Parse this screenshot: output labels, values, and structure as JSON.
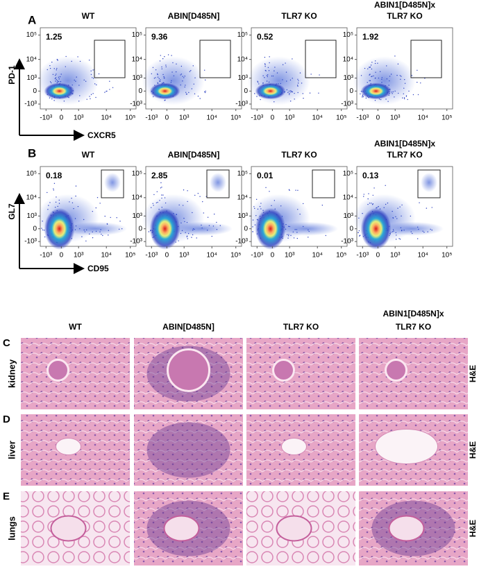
{
  "flow_panels": [
    {
      "label": "A",
      "y_label": "PD-1",
      "x_label": "CXCR5",
      "plots": [
        {
          "title": [
            "WT"
          ],
          "gate_value": 1.25
        },
        {
          "title": [
            "ABIN[D485N]"
          ],
          "gate_value": 9.36
        },
        {
          "title": [
            "TLR7 KO"
          ],
          "gate_value": 0.52
        },
        {
          "title": [
            "ABIN1[D485N]x",
            "TLR7 KO"
          ],
          "gate_value": 1.92
        }
      ],
      "y_ticks": [
        "10⁵",
        "10⁴",
        "10³",
        "0",
        "-10³"
      ],
      "x_ticks": [
        "-10³",
        "0",
        "10³",
        "10⁴",
        "10⁵"
      ]
    },
    {
      "label": "B",
      "y_label": "GL7",
      "x_label": "CD95",
      "plots": [
        {
          "title": [
            "WT"
          ],
          "gate_value": 0.18
        },
        {
          "title": [
            "ABIN[D485N]"
          ],
          "gate_value": 2.85
        },
        {
          "title": [
            "TLR7 KO"
          ],
          "gate_value": 0.01
        },
        {
          "title": [
            "ABIN1[D485N]x",
            "TLR7 KO"
          ],
          "gate_value": 0.13
        }
      ],
      "y_ticks": [
        "10⁵",
        "10⁴",
        "10³",
        "0",
        "-10³"
      ],
      "x_ticks": [
        "-10³",
        "0",
        "10³",
        "10⁴",
        "10⁵"
      ]
    }
  ],
  "histology": {
    "column_titles": [
      [
        "WT"
      ],
      [
        "ABIN[D485N]"
      ],
      [
        "TLR7 KO"
      ],
      [
        "ABIN1[D485N]x",
        "TLR7 KO"
      ]
    ],
    "rows": [
      {
        "label": "C",
        "tissue": "kidney",
        "stain": "H&E"
      },
      {
        "label": "D",
        "tissue": "liver",
        "stain": "H&E"
      },
      {
        "label": "E",
        "tissue": "lungs",
        "stain": "H&E"
      }
    ]
  }
}
